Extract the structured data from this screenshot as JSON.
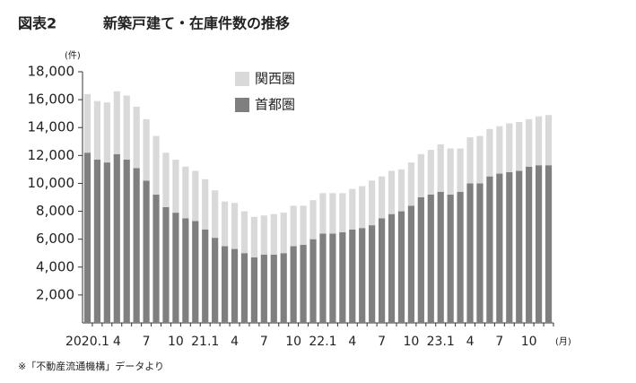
{
  "chart_data": {
    "type": "stacked_bar",
    "figure_label": "図表2",
    "title": "新築戸建て・在庫件数の推移",
    "y_unit": "(件)",
    "x_unit": "(月)",
    "note": "※「不動産流通機構」データより",
    "categories": [
      "2020.1",
      null,
      null,
      "4",
      null,
      null,
      "7",
      null,
      null,
      "10",
      null,
      null,
      "21.1",
      null,
      null,
      "4",
      null,
      null,
      "7",
      null,
      null,
      "10",
      null,
      null,
      "22.1",
      null,
      null,
      "4",
      null,
      null,
      "7",
      null,
      null,
      "10",
      null,
      null,
      "23.1",
      null,
      null,
      "4",
      null,
      null,
      "7",
      null,
      null,
      "10",
      null,
      null
    ],
    "series": [
      {
        "name": "関西圏",
        "color": "#d9d9d9",
        "values": [
          4200,
          4200,
          4300,
          4500,
          4600,
          4400,
          4400,
          4200,
          3900,
          3800,
          3700,
          3600,
          3600,
          3400,
          3200,
          3300,
          3000,
          2900,
          2800,
          2900,
          2900,
          2900,
          2800,
          2800,
          2900,
          2900,
          2800,
          2900,
          3000,
          3200,
          3000,
          3100,
          3000,
          3100,
          3100,
          3200,
          3400,
          3300,
          3100,
          3300,
          3400,
          3400,
          3400,
          3500,
          3500,
          3400,
          3500,
          3600
        ]
      },
      {
        "name": "首都圏",
        "color": "#7f7f7f",
        "values": [
          12200,
          11700,
          11500,
          12100,
          11700,
          11100,
          10200,
          9200,
          8300,
          7900,
          7500,
          7300,
          6700,
          6100,
          5500,
          5300,
          5000,
          4700,
          4900,
          4900,
          5000,
          5500,
          5600,
          6000,
          6400,
          6400,
          6500,
          6700,
          6800,
          7000,
          7500,
          7800,
          8000,
          8400,
          9000,
          9200,
          9400,
          9200,
          9400,
          10000,
          10000,
          10500,
          10700,
          10800,
          10900,
          11200,
          11300,
          11300
        ]
      }
    ],
    "ylim": [
      0,
      18000
    ],
    "yticks": [
      {
        "value": 2000,
        "label": "2,000"
      },
      {
        "value": 4000,
        "label": "4,000"
      },
      {
        "value": 6000,
        "label": "6,000"
      },
      {
        "value": 8000,
        "label": "8,000"
      },
      {
        "value": 10000,
        "label": "10,000"
      },
      {
        "value": 12000,
        "label": "12,000"
      },
      {
        "value": 14000,
        "label": "14,000"
      },
      {
        "value": 16000,
        "label": "16,000"
      },
      {
        "value": 18000,
        "label": "18,000"
      }
    ],
    "grid": false
  }
}
